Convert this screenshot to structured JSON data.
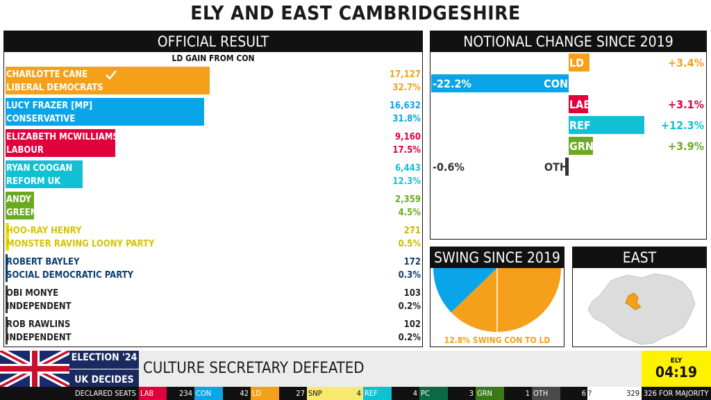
{
  "title": "ELY AND EAST CAMBRIDGESHIRE",
  "result": {
    "heading": "OFFICIAL RESULT",
    "subheading": "LD GAIN FROM CON",
    "candidates": [
      {
        "name": "CHARLOTTE CANE",
        "party": "LIBERAL DEMOCRATS",
        "votes": "17,127",
        "pct": "32.7%",
        "share": 32.7,
        "color": "#f5a01a",
        "elected": true
      },
      {
        "name": "LUCY FRAZER [MP]",
        "party": "CONSERVATIVE",
        "votes": "16,632",
        "pct": "31.8%",
        "share": 31.8,
        "color": "#0aa5e8"
      },
      {
        "name": "ELIZABETH MCWILLIAMS",
        "party": "LABOUR",
        "votes": "9,160",
        "pct": "17.5%",
        "share": 17.5,
        "color": "#e0003c"
      },
      {
        "name": "RYAN COOGAN",
        "party": "REFORM UK",
        "votes": "6,443",
        "pct": "12.3%",
        "share": 12.3,
        "color": "#12c0d4"
      },
      {
        "name": "ANDY COGAN",
        "party": "GREEN",
        "votes": "2,359",
        "pct": "4.5%",
        "share": 4.5,
        "color": "#6aaa1e"
      },
      {
        "name": "HOO-RAY HENRY",
        "party": "MONSTER RAVING LOONY PARTY",
        "votes": "271",
        "pct": "0.5%",
        "share": 0.5,
        "color": "#f2df00"
      },
      {
        "name": "ROBERT BAYLEY",
        "party": "SOCIAL DEMOCRATIC PARTY",
        "votes": "172",
        "pct": "0.3%",
        "share": 0.3,
        "color": "#0c3d72"
      },
      {
        "name": "OBI MONYE",
        "party": "INDEPENDENT",
        "votes": "103",
        "pct": "0.2%",
        "share": 0.2,
        "color": "#333333"
      },
      {
        "name": "ROB RAWLINS",
        "party": "INDEPENDENT",
        "votes": "102",
        "pct": "0.2%",
        "share": 0.2,
        "color": "#333333"
      }
    ]
  },
  "change": {
    "heading": "NOTIONAL CHANGE SINCE 2019",
    "rows": [
      {
        "party": "LD",
        "value": 3.4,
        "label": "+3.4%",
        "color": "#f5a01a"
      },
      {
        "party": "CON",
        "value": -22.2,
        "label": "-22.2%",
        "color": "#0aa5e8"
      },
      {
        "party": "LAB",
        "value": 3.1,
        "label": "+3.1%",
        "color": "#e0003c"
      },
      {
        "party": "REF",
        "value": 12.3,
        "label": "+12.3%",
        "color": "#12c0d4"
      },
      {
        "party": "GRN",
        "value": 3.9,
        "label": "+3.9%",
        "color": "#6aaa1e"
      },
      {
        "party": "OTH",
        "value": -0.6,
        "label": "-0.6%",
        "color": "#333333"
      }
    ]
  },
  "swing": {
    "heading": "SWING SINCE 2019",
    "text": "12.8% SWING CON TO LD",
    "value": 12.8,
    "from_color": "#0aa5e8",
    "to_color": "#f5a01a"
  },
  "region": {
    "heading": "EAST",
    "map_color": "#dddddd",
    "seat_color": "#f5a01a"
  },
  "branding": {
    "line1": "ELECTION '24",
    "line2": "UK DECIDES"
  },
  "ticker": {
    "headline": "CULTURE SECRETARY DEFEATED"
  },
  "clock": {
    "place": "ELY",
    "time": "04:19"
  },
  "seats": {
    "label": "DECLARED SEATS",
    "parties": [
      {
        "party": "LAB",
        "seats": "234",
        "color": "#e0003c"
      },
      {
        "party": "CON",
        "seats": "42",
        "color": "#0aa5e8"
      },
      {
        "party": "LD",
        "seats": "27",
        "color": "#f5a01a"
      },
      {
        "party": "SNP",
        "seats": "4",
        "color": "#f7ea6e"
      },
      {
        "party": "REF",
        "seats": "4",
        "color": "#12c0d4"
      },
      {
        "party": "PC",
        "seats": "3",
        "color": "#0a6a48"
      },
      {
        "party": "GRN",
        "seats": "1",
        "color": "#3a7a16"
      },
      {
        "party": "OTH",
        "seats": "6",
        "color": "#4a4a4a"
      }
    ],
    "unknown": "?",
    "total": "329",
    "majority": "326 FOR MAJORITY"
  }
}
